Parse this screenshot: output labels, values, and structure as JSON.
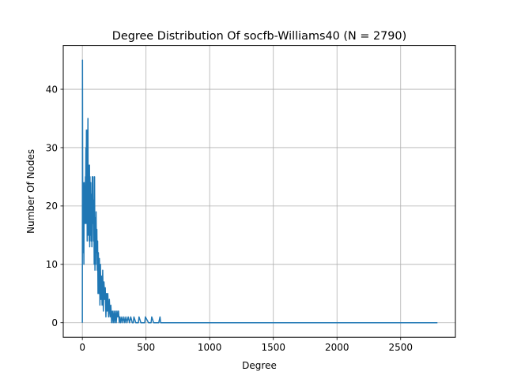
{
  "chart_data": {
    "type": "line",
    "title": "Degree Distribution Of socfb-Williams40 (N = 2790)",
    "xlabel": "Degree",
    "ylabel": "Number Of Nodes",
    "xlim": [
      -150,
      2930
    ],
    "ylim": [
      -2.5,
      47.5
    ],
    "xticks": [
      0,
      500,
      1000,
      1500,
      2000,
      2500
    ],
    "yticks": [
      0,
      10,
      20,
      30,
      40
    ],
    "grid": true,
    "series": [
      {
        "color": "#1f77b4",
        "x": [
          0,
          1,
          2,
          3,
          4,
          5,
          6,
          7,
          8,
          9,
          10,
          12,
          14,
          16,
          18,
          20,
          22,
          24,
          26,
          28,
          30,
          32,
          34,
          36,
          38,
          40,
          42,
          44,
          46,
          48,
          50,
          52,
          54,
          56,
          58,
          60,
          63,
          66,
          69,
          72,
          75,
          78,
          81,
          84,
          87,
          90,
          93,
          96,
          99,
          102,
          105,
          108,
          111,
          114,
          117,
          120,
          123,
          126,
          130,
          134,
          138,
          142,
          146,
          150,
          155,
          160,
          165,
          170,
          175,
          180,
          185,
          190,
          195,
          200,
          206,
          212,
          218,
          224,
          230,
          236,
          242,
          248,
          254,
          260,
          266,
          272,
          278,
          284,
          290,
          296,
          302,
          310,
          318,
          326,
          334,
          342,
          350,
          360,
          370,
          380,
          392,
          400,
          405,
          420,
          440,
          445,
          460,
          490,
          495,
          520,
          540,
          545,
          560,
          600,
          610,
          615,
          650,
          800,
          1000,
          1500,
          2000,
          2500,
          2789
        ],
        "values": [
          0,
          45,
          32,
          22,
          16,
          24,
          18,
          12,
          20,
          14,
          16,
          10,
          24,
          20,
          18,
          23,
          17,
          25,
          22,
          30,
          17,
          33,
          19,
          28,
          14,
          33,
          25,
          35,
          15,
          27,
          16,
          25,
          14,
          27,
          13,
          25,
          15,
          24,
          14,
          22,
          13,
          25,
          17,
          25,
          14,
          21,
          10,
          25,
          9,
          18,
          10,
          19,
          12,
          16,
          9,
          14,
          5,
          12,
          5,
          11,
          3,
          10,
          4,
          8,
          3,
          9,
          2,
          7,
          4,
          6,
          1,
          5,
          2,
          5,
          1,
          4,
          1,
          3,
          0,
          2,
          0,
          2,
          0,
          2,
          0,
          2,
          1,
          2,
          0,
          1,
          0,
          1,
          0,
          1,
          0,
          1,
          0,
          1,
          0,
          1,
          0,
          0,
          1,
          0,
          0,
          1,
          0,
          0,
          1,
          0,
          0,
          1,
          0,
          0,
          1,
          0,
          0,
          0,
          0,
          0,
          0,
          0,
          0
        ]
      }
    ]
  }
}
